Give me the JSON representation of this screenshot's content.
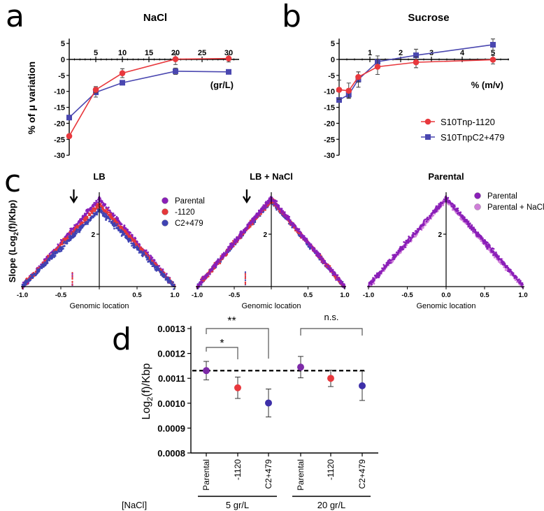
{
  "figure": {
    "panel_labels": {
      "a": "a",
      "b": "b",
      "c": "c",
      "d": "d"
    }
  },
  "chart_data": [
    {
      "id": "a",
      "type": "line",
      "title": "NaCl",
      "xlabel": "(gr/L)",
      "ylabel": "% of μ variation",
      "xlim": [
        0,
        31
      ],
      "ylim": [
        -30,
        5
      ],
      "xticks": [
        "5",
        "10",
        "15",
        "20",
        "25",
        "30"
      ],
      "yticks": [
        "5",
        "0",
        "-5",
        "-10",
        "-15",
        "-20",
        "-25",
        "-30"
      ],
      "series": [
        {
          "name": "S10TnpC2+479",
          "color": "#4a47b0",
          "marker": "square",
          "x": [
            0,
            5,
            10,
            20,
            30
          ],
          "y": [
            -18.2,
            -10.3,
            -7.3,
            -3.7,
            -3.9
          ],
          "err": [
            0.6,
            1.5,
            0.5,
            1.0,
            0.3
          ]
        },
        {
          "name": "S10Tnp-1120",
          "color": "#e8383d",
          "marker": "circle",
          "x": [
            0,
            5,
            10,
            20,
            30
          ],
          "y": [
            -24.0,
            -9.5,
            -4.3,
            0.1,
            0.3
          ],
          "err": [
            0.5,
            1.0,
            1.4,
            1.7,
            1.1
          ]
        }
      ]
    },
    {
      "id": "b",
      "type": "line",
      "title": "Sucrose",
      "xlabel": "% (m/v)",
      "ylabel": "",
      "xlim": [
        0,
        5.5
      ],
      "ylim": [
        -30,
        5
      ],
      "xticks": [
        "1",
        "2",
        "3",
        "4",
        "5"
      ],
      "yticks": [
        "5",
        "0",
        "-5",
        "-10",
        "-15",
        "-20",
        "-25",
        "-30"
      ],
      "legend_position": "bottom-right",
      "series": [
        {
          "name": "S10TnpC2+479",
          "color": "#4a47b0",
          "marker": "square",
          "x": [
            0,
            0.3125,
            0.625,
            1.25,
            2.5,
            5
          ],
          "y": [
            -12.7,
            -11.0,
            -6.3,
            -0.7,
            1.3,
            4.6
          ],
          "err": [
            0.6,
            1.0,
            2.4,
            1.8,
            1.9,
            1.8
          ]
        },
        {
          "name": "S10Tnp-1120",
          "color": "#e8383d",
          "marker": "circle",
          "x": [
            0,
            0.3125,
            0.625,
            1.25,
            2.5,
            5
          ],
          "y": [
            -9.5,
            -9.8,
            -5.5,
            -2.3,
            -0.9,
            -0.1
          ],
          "err": [
            3.0,
            2.4,
            1.6,
            2.4,
            1.7,
            1.3
          ]
        }
      ],
      "legend": [
        {
          "name": "S10Tnp-1120",
          "color": "#e8383d",
          "marker": "circle"
        },
        {
          "name": "S10TnpC2+479",
          "color": "#4a47b0",
          "marker": "square"
        }
      ]
    },
    {
      "id": "c",
      "type": "scatter",
      "ylabel": {
        "pre": "Slope (Log",
        "sub": "2",
        "post": "(f)/Kbp)"
      },
      "xlim": [
        -1.0,
        1.0
      ],
      "ylim": [
        1.0,
        2.8
      ],
      "ytick": "2",
      "subplots": [
        {
          "title": "LB",
          "xlabel": "Genomic location",
          "arrow_x": -0.35,
          "xticks": [
            "-1.0",
            "-0.5",
            "",
            "0.5",
            "1.0"
          ],
          "series": [
            {
              "name": "Parental",
              "color": "#8a1fb8",
              "peak": 2.67,
              "end": 1.0
            },
            {
              "name": "-1120",
              "color": "#e5383b",
              "peak": 2.57,
              "end": 1.0
            },
            {
              "name": "C2+479",
              "color": "#3f43b3",
              "peak": 2.47,
              "end": 1.0
            }
          ]
        },
        {
          "title": "LB + NaCl",
          "xlabel": "Genomic location",
          "arrow_x": -0.35,
          "xticks": [
            "-1.0",
            "-0.5",
            "",
            "0.5",
            "1.0"
          ],
          "series": [
            {
              "name": "C2+479",
              "color": "#3f43b3",
              "peak": 2.64,
              "end": 1.0
            },
            {
              "name": "-1120",
              "color": "#e5383b",
              "peak": 2.66,
              "end": 1.0
            },
            {
              "name": "Parental",
              "color": "#8a1fb8",
              "peak": 2.69,
              "end": 1.0
            }
          ]
        },
        {
          "title": "Parental",
          "xlabel": "Genomic location",
          "arrow_x": null,
          "xticks": [
            "-1.0",
            "-0.5",
            "0.0",
            "0.5",
            "1.0"
          ],
          "series": [
            {
              "name": "Parental + NaCl",
              "color": "#cf7fd8",
              "peak": 2.66,
              "end": 1.0
            },
            {
              "name": "Parental",
              "color": "#8a1fb8",
              "peak": 2.69,
              "end": 1.02
            }
          ]
        }
      ],
      "legends": [
        [
          {
            "name": "Parental",
            "color": "#8a1fb8"
          },
          {
            "name": "-1120",
            "color": "#e5383b"
          },
          {
            "name": "C2+479",
            "color": "#3f43b3"
          }
        ],
        [
          {
            "name": "Parental",
            "color": "#8a1fb8"
          },
          {
            "name": "Parental + NaCl",
            "color": "#cf7fd8"
          }
        ]
      ]
    },
    {
      "id": "d",
      "type": "scatter",
      "ylabel": {
        "pre": "Log",
        "sub": "2",
        "post": "(f)/Kbp"
      },
      "ylim": [
        0.0008,
        0.0013
      ],
      "yticks": [
        "0.0013",
        "0.0012",
        "0.0011",
        "0.0010",
        "0.0009",
        "0.0008"
      ],
      "categories": [
        "Parental",
        "-1120",
        "C2+479",
        "Parental",
        "-1120",
        "C2+479"
      ],
      "values": [
        0.001131,
        0.001062,
        0.001001,
        0.001145,
        0.0011,
        0.00107
      ],
      "errors": [
        3.7e-05,
        4.3e-05,
        5.6e-05,
        4.3e-05,
        3.3e-05,
        5.9e-05
      ],
      "colors": [
        "#7d2aa8",
        "#e8383d",
        "#3d2fa8",
        "#7d2aa8",
        "#e8383d",
        "#3d2fa8"
      ],
      "reference_line": 0.001131,
      "group_axis_label": "[NaCl]",
      "groups": [
        {
          "label": "5 gr/L",
          "from": 0,
          "to": 2
        },
        {
          "label": "20 gr/L",
          "from": 3,
          "to": 5
        }
      ],
      "significance": [
        {
          "from": 0,
          "to": 2,
          "label": "**"
        },
        {
          "from": 0,
          "to": 1,
          "label": "*"
        },
        {
          "from": 3,
          "to": 5,
          "label": "n.s."
        }
      ]
    }
  ]
}
